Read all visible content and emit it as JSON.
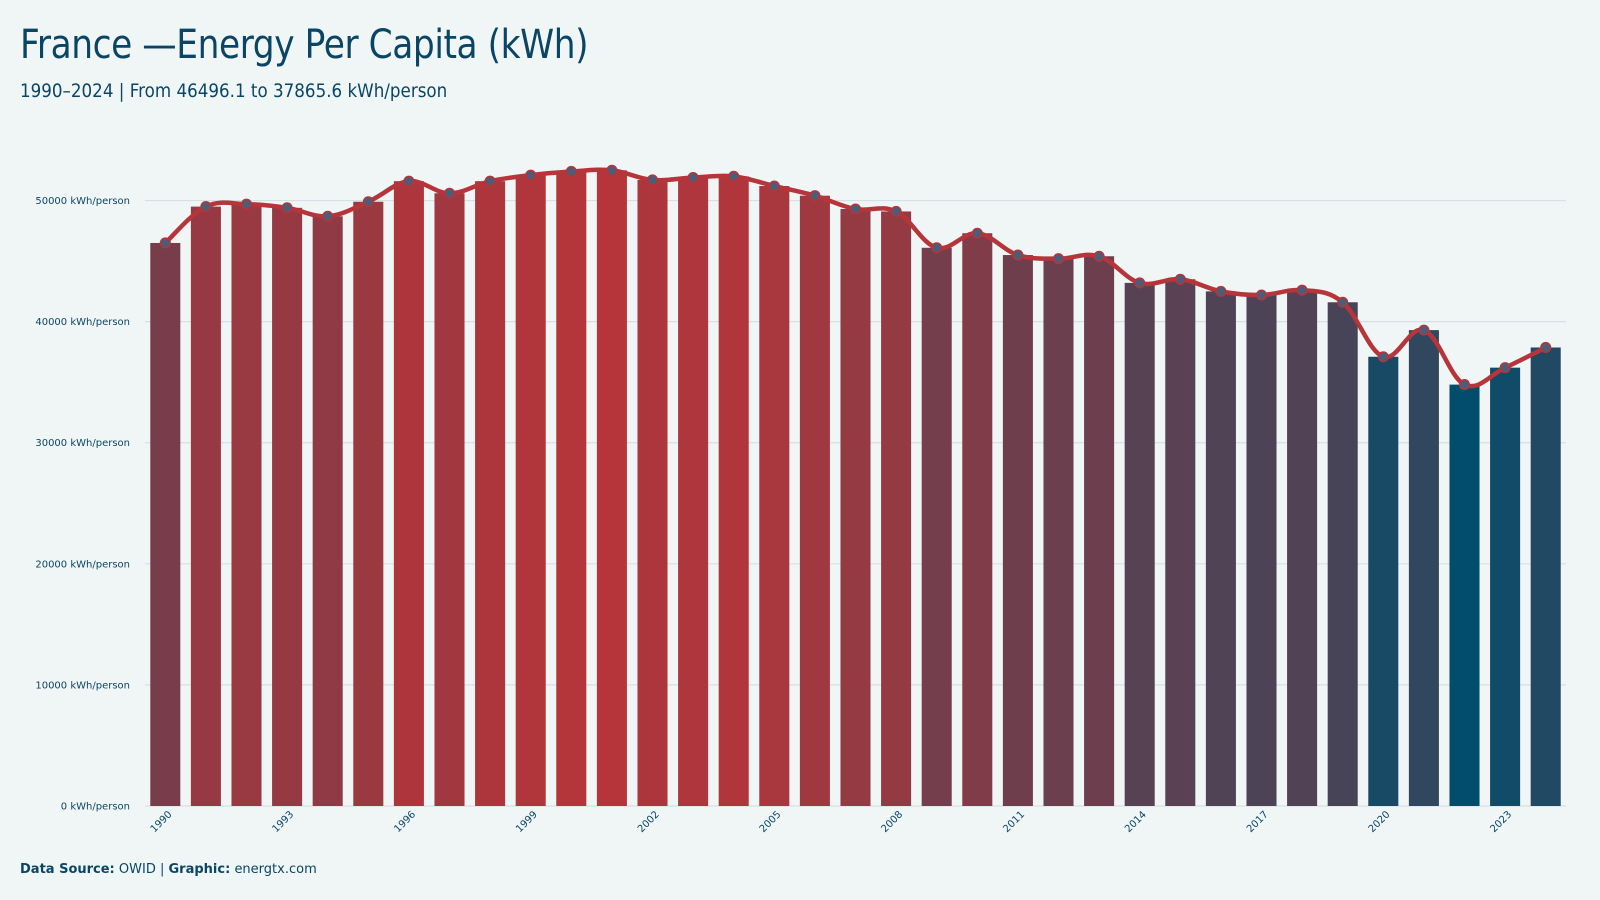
{
  "title": "France —Energy Per Capita (kWh)",
  "subtitle": "1990–2024 | From 46496.1 to 37865.6 kWh/person",
  "footer": {
    "source_label": "Data Source:",
    "source_value": "OWID",
    "separator": "|",
    "graphic_label": "Graphic:",
    "graphic_value": "energtx.com"
  },
  "chart_data": {
    "type": "bar",
    "title": "France —Energy Per Capita (kWh)",
    "subtitle": "1990–2024 | From 46496.1 to 37865.6 kWh/person",
    "xlabel": "",
    "ylabel": "",
    "ylim": [
      0,
      55000
    ],
    "grid": true,
    "line_overlay": true,
    "y_ticks": [
      0,
      10000,
      20000,
      30000,
      40000,
      50000
    ],
    "y_tick_labels": [
      "0 kWh/person",
      "10000 kWh/person",
      "20000 kWh/person",
      "30000 kWh/person",
      "40000 kWh/person",
      "50000 kWh/person"
    ],
    "x_tick_labels": [
      "1990",
      "1993",
      "1996",
      "1999",
      "2002",
      "2005",
      "2008",
      "2011",
      "2014",
      "2017",
      "2020",
      "2023"
    ],
    "categories": [
      "1990",
      "1991",
      "1992",
      "1993",
      "1994",
      "1995",
      "1996",
      "1997",
      "1998",
      "1999",
      "2000",
      "2001",
      "2002",
      "2003",
      "2004",
      "2005",
      "2006",
      "2007",
      "2008",
      "2009",
      "2010",
      "2011",
      "2012",
      "2013",
      "2014",
      "2015",
      "2016",
      "2017",
      "2018",
      "2019",
      "2020",
      "2021",
      "2022",
      "2023",
      "2024"
    ],
    "values": [
      46496.1,
      49500,
      49700,
      49400,
      48700,
      49900,
      51600,
      50600,
      51600,
      52100,
      52400,
      52500,
      51700,
      51900,
      52000,
      51200,
      50400,
      49300,
      49100,
      46100,
      47300,
      45500,
      45200,
      45400,
      43200,
      43500,
      42500,
      42200,
      42600,
      41600,
      37100,
      39300,
      34800,
      36200,
      37865.6
    ],
    "colors": {
      "high": "#b5353a",
      "low": "#024d6b",
      "line": "#b5353a",
      "marker_fill": "#4c5d78",
      "grid": "#d6dfe3"
    }
  }
}
